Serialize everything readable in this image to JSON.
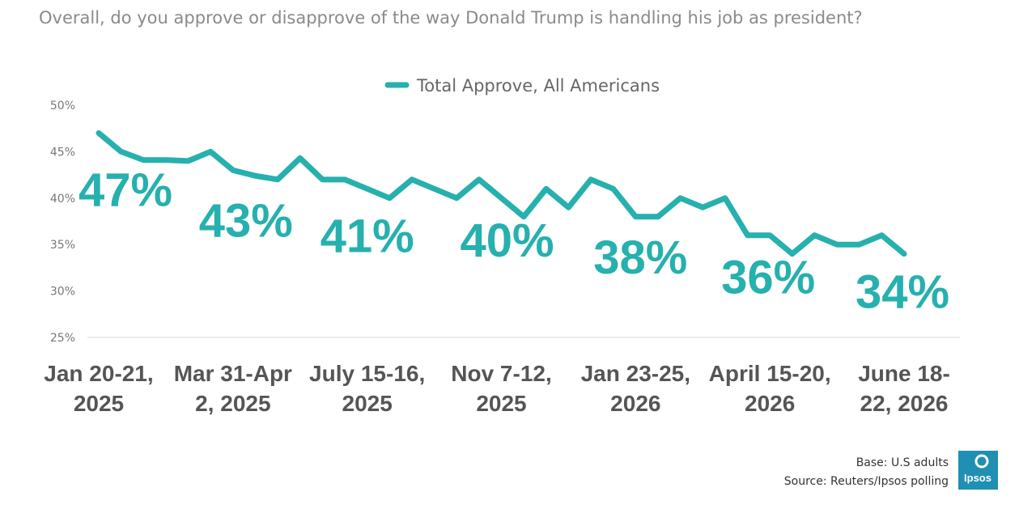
{
  "chart_data": {
    "type": "line",
    "title": "Overall, do you approve or disapprove of the way Donald Trump is handling his job as president?",
    "categories": [
      "Jan 20-21,\n2025",
      null,
      null,
      null,
      null,
      null,
      "Mar 31-Apr\n2, 2025",
      null,
      null,
      null,
      null,
      null,
      "July 15-16,\n2025",
      null,
      null,
      null,
      null,
      null,
      "Nov 7-12,\n2025",
      null,
      null,
      null,
      null,
      null,
      "Jan 23-25,\n2026",
      null,
      null,
      null,
      null,
      null,
      "April 15-20,\n2026",
      null,
      null,
      null,
      null,
      null,
      "June 18-\n22, 2026"
    ],
    "series": [
      {
        "name": "Total Approve, All Americans",
        "color": "#26b0ae",
        "values": [
          47,
          45,
          44.1,
          44.1,
          44,
          45,
          43,
          42.4,
          42,
          44.3,
          42,
          42,
          41,
          40,
          42,
          41,
          40,
          42,
          40,
          38,
          41,
          39,
          42,
          41,
          38,
          38,
          40,
          39,
          40,
          36,
          36,
          34,
          36,
          35,
          35,
          36,
          34
        ],
        "value_labels": [
          "47%",
          null,
          null,
          null,
          null,
          null,
          "43%",
          null,
          null,
          null,
          null,
          null,
          "41%",
          null,
          null,
          null,
          null,
          null,
          "40%",
          null,
          null,
          null,
          null,
          null,
          "38%",
          null,
          null,
          null,
          null,
          null,
          "36%",
          null,
          null,
          null,
          null,
          null,
          "34%"
        ]
      }
    ],
    "ylim": [
      25,
      50
    ],
    "yticks": [
      {
        "value": 25,
        "label": "25%"
      },
      {
        "value": 30,
        "label": "30%"
      },
      {
        "value": 35,
        "label": "35%"
      },
      {
        "value": 40,
        "label": "40%"
      },
      {
        "value": 45,
        "label": "45%"
      },
      {
        "value": 50,
        "label": "50%"
      }
    ],
    "grid": false,
    "legend": "top",
    "footer": [
      "Base: U.S adults",
      "Source: Reuters/Ipsos polling"
    ],
    "logo": "Ipsos"
  }
}
